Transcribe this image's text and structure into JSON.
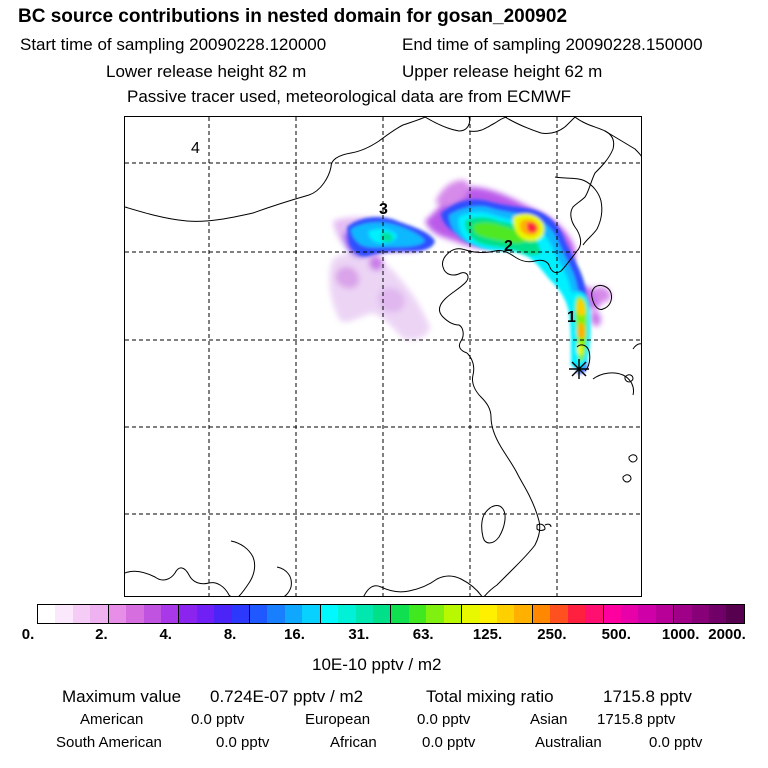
{
  "header": {
    "title": "BC  source contributions in nested domain for gosan_200902",
    "start_label": "Start time of sampling 20090228.120000",
    "end_label": "End time of sampling 20090228.150000",
    "lower_label": "Lower release height   82 m",
    "upper_label": "Upper release height   62 m",
    "note": "Passive tracer used, meteorological data are from ECMWF"
  },
  "map": {
    "labels": [
      "4",
      "3",
      "2",
      "1"
    ],
    "receptor_icon": "asterisk-star-icon"
  },
  "colorbar": {
    "colors": [
      "#ffffff",
      "#fce8fc",
      "#f5ccf5",
      "#efb2f0",
      "#e68ee8",
      "#d66ee0",
      "#c054e0",
      "#a838e8",
      "#8c24f0",
      "#7020f4",
      "#4c24f8",
      "#2c38fc",
      "#2058ff",
      "#1880ff",
      "#10a8ff",
      "#08d0ff",
      "#00f8ff",
      "#00f0d8",
      "#00e8b0",
      "#00e088",
      "#10e050",
      "#40e820",
      "#80f010",
      "#b8f800",
      "#e8f800",
      "#fff000",
      "#ffd000",
      "#ffb000",
      "#ff8800",
      "#ff5020",
      "#ff2040",
      "#ff1070",
      "#ff00a0",
      "#e800a8",
      "#d000a8",
      "#b80098",
      "#a00088",
      "#880078",
      "#700068",
      "#580050"
    ],
    "ticks": [
      "0.",
      "2.",
      "4.",
      "8.",
      "16.",
      "31.",
      "63.",
      "125.",
      "250.",
      "500.",
      "1000.",
      "2000."
    ],
    "unit": "10E-10 pptv / m2"
  },
  "stats": {
    "max_label": "Maximum value",
    "max_value": "0.724E-07 pptv / m2",
    "total_label": "Total mixing ratio",
    "total_value": "1715.8 pptv",
    "american_label": "American",
    "american_value": "0.0 pptv",
    "european_label": "European",
    "european_value": "0.0 pptv",
    "asian_label": "Asian",
    "asian_value": "1715.8 pptv",
    "south_american_label": "South American",
    "south_american_value": "0.0 pptv",
    "african_label": "African",
    "african_value": "0.0 pptv",
    "australian_label": "Australian",
    "australian_value": "0.0 pptv"
  }
}
